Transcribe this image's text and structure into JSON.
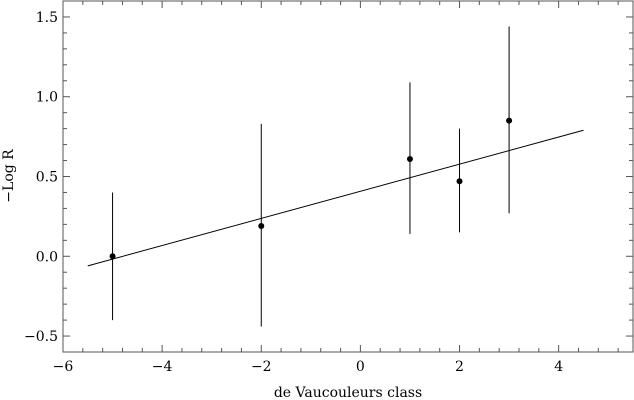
{
  "chart_data": {
    "type": "scatter",
    "title": "",
    "xlabel": "de Vaucouleurs class",
    "ylabel": "−Log R",
    "xlim": [
      -6,
      5.5
    ],
    "ylim": [
      -0.6,
      1.6
    ],
    "xticks": [
      -6,
      -4,
      -2,
      0,
      2,
      4
    ],
    "xtick_labels": [
      "−6",
      "−4",
      "−2",
      "0",
      "2",
      "4"
    ],
    "yticks": [
      -0.5,
      0.0,
      0.5,
      1.0,
      1.5
    ],
    "ytick_labels": [
      "−0.5",
      "0.0",
      "0.5",
      "1.0",
      "1.5"
    ],
    "grid": false,
    "points": [
      {
        "x": -5,
        "y": 0.0,
        "y_low": -0.4,
        "y_high": 0.4
      },
      {
        "x": -2,
        "y": 0.19,
        "y_low": -0.44,
        "y_high": 0.83
      },
      {
        "x": 1,
        "y": 0.61,
        "y_low": 0.14,
        "y_high": 1.09
      },
      {
        "x": 2,
        "y": 0.47,
        "y_low": 0.15,
        "y_high": 0.8
      },
      {
        "x": 3,
        "y": 0.85,
        "y_low": 0.27,
        "y_high": 1.44
      }
    ],
    "fit_line": {
      "x": [
        -5.5,
        4.5
      ],
      "y": [
        -0.06,
        0.79
      ]
    }
  }
}
